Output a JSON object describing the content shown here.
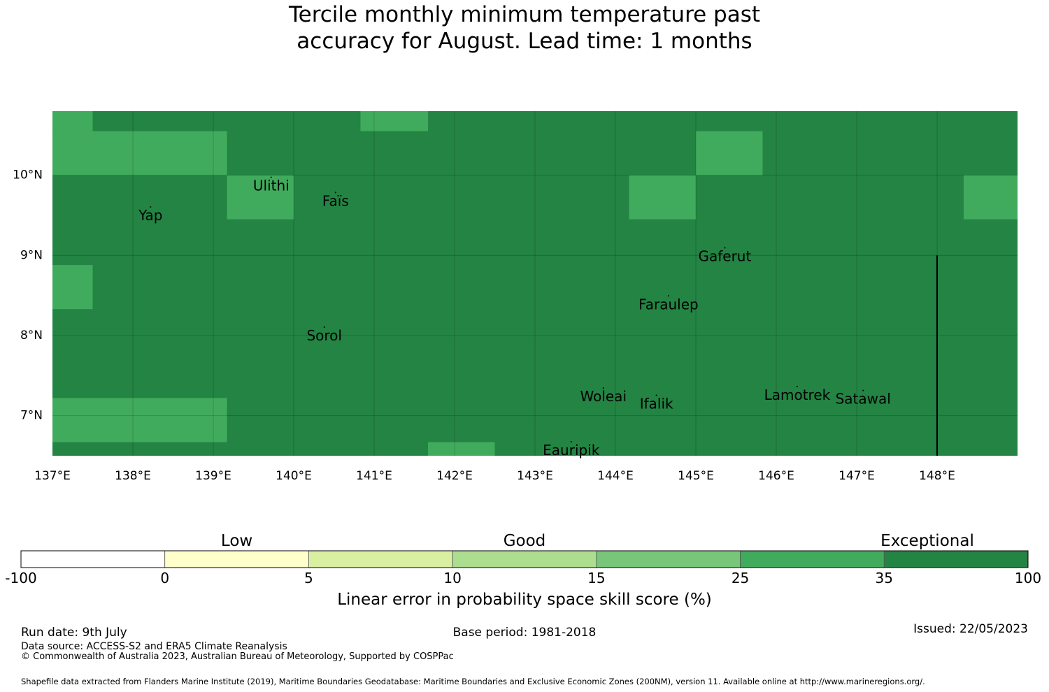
{
  "title_line1": "Tercile monthly minimum temperature past",
  "title_line2": "accuracy for August. Lead time: 1 months",
  "map": {
    "lon_range": [
      137.0,
      149.0
    ],
    "lat_range": [
      6.5,
      10.8
    ],
    "lon_ticks": [
      {
        "value": 137,
        "label": "137°E"
      },
      {
        "value": 138,
        "label": "138°E"
      },
      {
        "value": 139,
        "label": "139°E"
      },
      {
        "value": 140,
        "label": "140°E"
      },
      {
        "value": 141,
        "label": "141°E"
      },
      {
        "value": 142,
        "label": "142°E"
      },
      {
        "value": 143,
        "label": "143°E"
      },
      {
        "value": 144,
        "label": "144°E"
      },
      {
        "value": 145,
        "label": "145°E"
      },
      {
        "value": 146,
        "label": "146°E"
      },
      {
        "value": 147,
        "label": "147°E"
      },
      {
        "value": 148,
        "label": "148°E"
      }
    ],
    "lat_ticks": [
      {
        "value": 10,
        "label": "10°N"
      },
      {
        "value": 9,
        "label": "9°N"
      },
      {
        "value": 8,
        "label": "8°N"
      },
      {
        "value": 7,
        "label": "7°N"
      }
    ],
    "background_category": "35-100",
    "background_color": "#238443",
    "highlight_color": "#41ab5d",
    "highlight_cells": [
      {
        "lon": [
          137.0,
          137.5
        ],
        "lat": [
          10.55,
          10.8
        ]
      },
      {
        "lon": [
          137.0,
          139.17
        ],
        "lat": [
          10.0,
          10.55
        ]
      },
      {
        "lon": [
          140.83,
          141.67
        ],
        "lat": [
          10.55,
          10.8
        ]
      },
      {
        "lon": [
          145.0,
          145.83
        ],
        "lat": [
          10.0,
          10.55
        ]
      },
      {
        "lon": [
          139.17,
          140.0
        ],
        "lat": [
          9.45,
          10.0
        ]
      },
      {
        "lon": [
          144.17,
          145.0
        ],
        "lat": [
          9.45,
          10.0
        ]
      },
      {
        "lon": [
          148.33,
          149.0
        ],
        "lat": [
          9.45,
          10.0
        ]
      },
      {
        "lon": [
          137.0,
          137.5
        ],
        "lat": [
          8.33,
          8.88
        ]
      },
      {
        "lon": [
          137.0,
          139.17
        ],
        "lat": [
          6.67,
          7.22
        ]
      },
      {
        "lon": [
          141.67,
          142.5
        ],
        "lat": [
          6.5,
          6.67
        ]
      }
    ],
    "boundary_line": {
      "lon": 148.0,
      "lat": [
        6.5,
        9.0
      ]
    },
    "places": [
      {
        "name": "Ulithi",
        "lon": 139.72,
        "lat": 9.87
      },
      {
        "name": "Faïs",
        "lon": 140.52,
        "lat": 9.68
      },
      {
        "name": "Yap",
        "lon": 138.22,
        "lat": 9.5
      },
      {
        "name": "Gaferut",
        "lon": 145.36,
        "lat": 8.99
      },
      {
        "name": "Faraulep",
        "lon": 144.66,
        "lat": 8.39
      },
      {
        "name": "Sorol",
        "lon": 140.38,
        "lat": 8.0
      },
      {
        "name": "Woleai",
        "lon": 143.85,
        "lat": 7.24
      },
      {
        "name": "Ifalik",
        "lon": 144.51,
        "lat": 7.15
      },
      {
        "name": "Lamotrek",
        "lon": 146.26,
        "lat": 7.26
      },
      {
        "name": "Satawal",
        "lon": 147.08,
        "lat": 7.21
      },
      {
        "name": "Eauripik",
        "lon": 143.45,
        "lat": 6.57
      }
    ]
  },
  "colorbar": {
    "categories": [
      {
        "label": "Low",
        "position": 1.5
      },
      {
        "label": "Good",
        "position": 3.5
      },
      {
        "label": "Exceptional",
        "position": 6.3
      }
    ],
    "bins": [
      {
        "from": "-100",
        "to": "0",
        "color": "#ffffff"
      },
      {
        "from": "0",
        "to": "5",
        "color": "#ffffcc"
      },
      {
        "from": "5",
        "to": "10",
        "color": "#d9f0a3"
      },
      {
        "from": "10",
        "to": "15",
        "color": "#addd8e"
      },
      {
        "from": "15",
        "to": "25",
        "color": "#78c679"
      },
      {
        "from": "25",
        "to": "35",
        "color": "#41ab5d"
      },
      {
        "from": "35",
        "to": "100",
        "color": "#238443"
      }
    ],
    "tick_labels": [
      "-100",
      "0",
      "5",
      "10",
      "15",
      "25",
      "35",
      "100"
    ],
    "axis_label": "Linear error in probability space skill score (%)"
  },
  "footer": {
    "run_date": "Run date: 9th July",
    "base_period": "Base period: 1981-2018",
    "issued": "Issued: 22/05/2023",
    "data_source": "Data source: ACCESS-S2 and ERA5 Climate Reanalysis",
    "copyright": "© Commonwealth of Australia 2023, Australian Bureau of Meteorology, Supported by COSPPac",
    "shapefile": "Shapefile data extracted from Flanders Marine Institute (2019), Maritime Boundaries Geodatabase: Maritime Boundaries and Exclusive Economic Zones (200NM), version 11. Available online at http://www.marineregions.org/."
  }
}
